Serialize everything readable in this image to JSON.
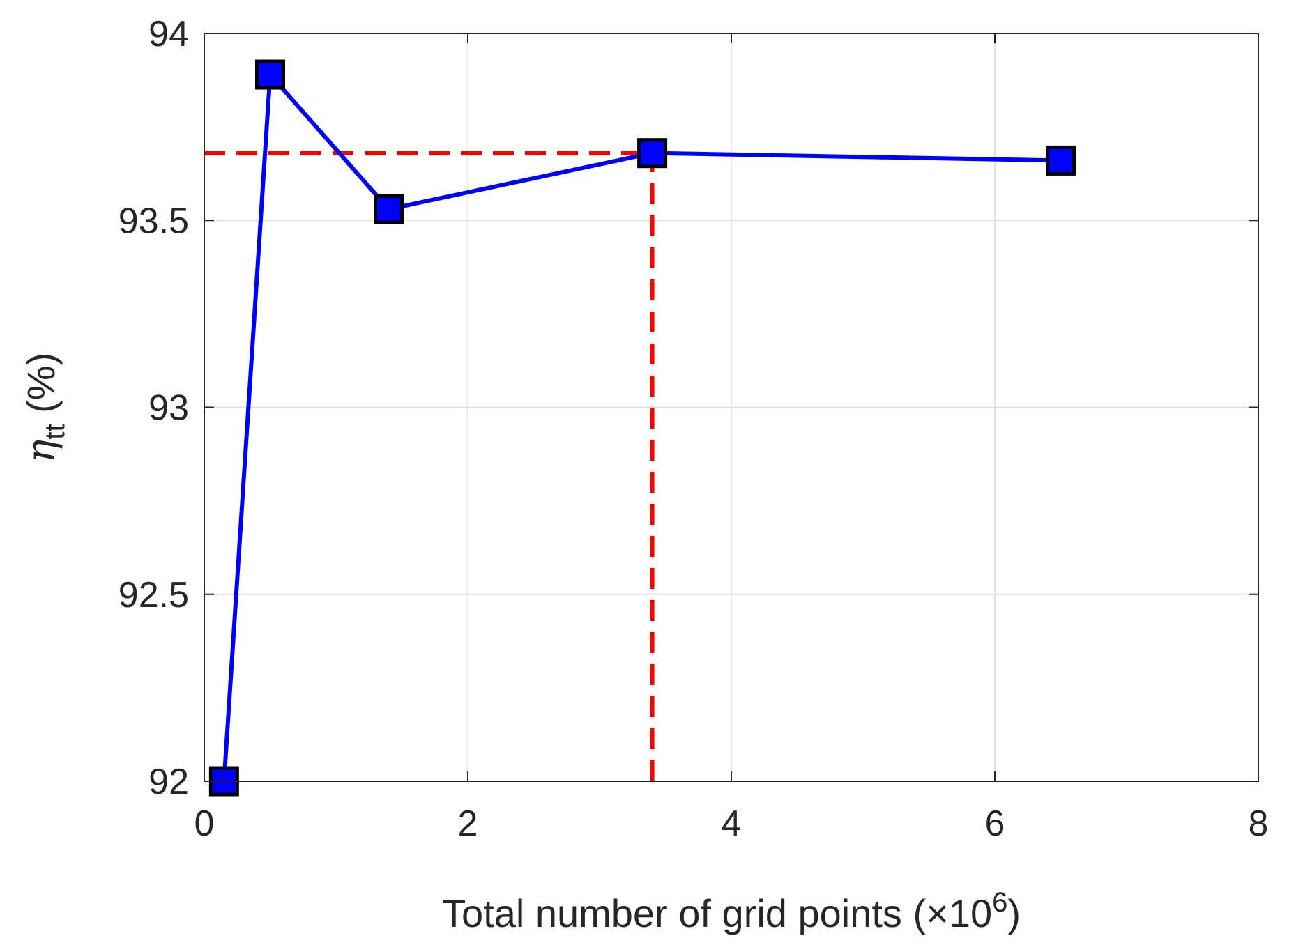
{
  "chart_data": {
    "type": "line",
    "title": "",
    "xlabel": {
      "text": "Total number of grid points (×10",
      "exponent": "6",
      "close": ")"
    },
    "ylabel": {
      "symbol": "η",
      "subscript": "tt",
      "unit": " (%)"
    },
    "xlim": [
      0,
      8
    ],
    "ylim": [
      92,
      94
    ],
    "xticks": [
      0,
      2,
      4,
      6,
      8
    ],
    "xtick_labels": [
      "0",
      "2",
      "4",
      "6",
      "8"
    ],
    "yticks": [
      92,
      92.5,
      93,
      93.5,
      94
    ],
    "ytick_labels": [
      "92",
      "92.5",
      "93",
      "93.5",
      "94"
    ],
    "grid": true,
    "series": [
      {
        "x": [
          0.15,
          0.5,
          1.4,
          3.4,
          6.5
        ],
        "y": [
          92.0,
          93.89,
          93.53,
          93.68,
          93.66
        ],
        "color": "#0000ff",
        "marker": "square",
        "marker_face": "#0000ff",
        "marker_edge": "#000000"
      }
    ],
    "reference_lines": [
      {
        "orientation": "horizontal",
        "y": 93.68,
        "x_from": 0,
        "x_to": 3.4,
        "style": "dashed",
        "color": "#ff0000"
      },
      {
        "orientation": "vertical",
        "x": 3.4,
        "y_from": 92,
        "y_to": 93.68,
        "style": "dashed",
        "color": "#ff0000"
      }
    ]
  }
}
